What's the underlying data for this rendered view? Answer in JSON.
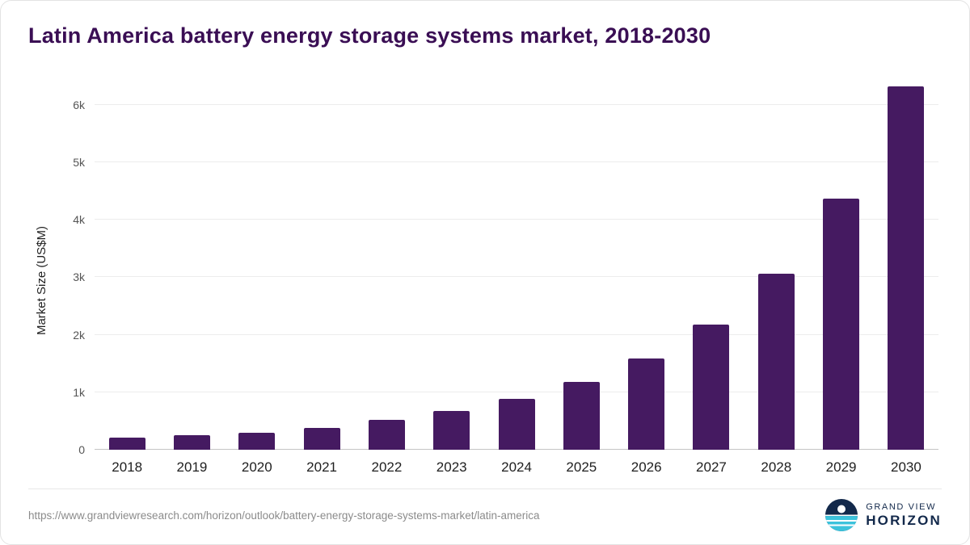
{
  "header": {
    "title": "Latin America battery energy storage systems market, 2018-2030"
  },
  "chart_data": {
    "type": "bar",
    "title": "Latin America battery energy storage systems market, 2018-2030",
    "categories": [
      "2018",
      "2019",
      "2020",
      "2021",
      "2022",
      "2023",
      "2024",
      "2025",
      "2026",
      "2027",
      "2028",
      "2029",
      "2030"
    ],
    "values": [
      210,
      250,
      300,
      380,
      520,
      670,
      890,
      1180,
      1590,
      2180,
      3060,
      4370,
      6320
    ],
    "xlabel": "",
    "ylabel": "Market Size (US$M)",
    "ylim": [
      0,
      6500
    ],
    "yticks": [
      {
        "value": 0,
        "label": "0"
      },
      {
        "value": 1000,
        "label": "1k"
      },
      {
        "value": 2000,
        "label": "2k"
      },
      {
        "value": 3000,
        "label": "3k"
      },
      {
        "value": 4000,
        "label": "4k"
      },
      {
        "value": 5000,
        "label": "5k"
      },
      {
        "value": 6000,
        "label": "6k"
      }
    ],
    "bar_color": "#451a61",
    "grid": true,
    "legend": "none"
  },
  "footer": {
    "source_url": "https://www.grandviewresearch.com/horizon/outlook/battery-energy-storage-systems-market/latin-america",
    "logo": {
      "line1": "GRAND VIEW",
      "line2": "HORIZON"
    }
  },
  "colors": {
    "title": "#3a0e54",
    "bar": "#451a61",
    "logo_navy": "#13294b",
    "logo_teal": "#3cc3dc"
  }
}
